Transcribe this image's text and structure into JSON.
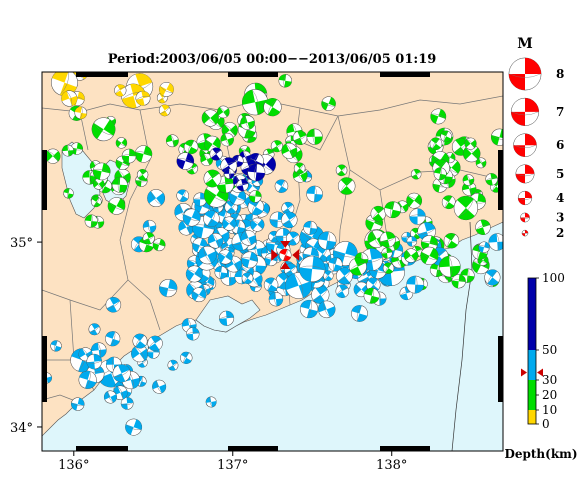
{
  "title": "Period:2003/06/05 00:00−−2013/06/05 01:19",
  "x_axis": {
    "range": [
      135.8,
      138.7
    ],
    "ticks": [
      {
        "value": 136,
        "label": "136°"
      },
      {
        "value": 137,
        "label": "137°"
      },
      {
        "value": 138,
        "label": "138°"
      }
    ]
  },
  "y_axis": {
    "range": [
      33.87,
      35.92
    ],
    "ticks": [
      {
        "value": 34,
        "label": "34°"
      },
      {
        "value": 35,
        "label": "35°"
      }
    ]
  },
  "colors": {
    "land": "#fde2c2",
    "sea": "#def6fb",
    "mechanism_fill": "#ff0000",
    "border_line": "#777777"
  },
  "magnitude_legend": {
    "title": "M",
    "entries": [
      {
        "label": "8",
        "m": 8
      },
      {
        "label": "7",
        "m": 7
      },
      {
        "label": "6",
        "m": 6
      },
      {
        "label": "5",
        "m": 5
      },
      {
        "label": "4",
        "m": 4
      },
      {
        "label": "3",
        "m": 3
      },
      {
        "label": "2",
        "m": 2
      }
    ]
  },
  "depth_scale": {
    "title": "Depth(km)",
    "min": 0,
    "max": 100,
    "marker_value": 35,
    "bands": [
      {
        "from": 0,
        "to": 10,
        "color": "#ffd700"
      },
      {
        "from": 10,
        "to": 20,
        "color": "#00dd00"
      },
      {
        "from": 20,
        "to": 30,
        "color": "#00dd00"
      },
      {
        "from": 30,
        "to": 50,
        "color": "#00aaee"
      },
      {
        "from": 50,
        "to": 100,
        "color": "#0000aa"
      }
    ],
    "labels": [
      {
        "value": 100,
        "label": "100"
      },
      {
        "value": 50,
        "label": "50"
      },
      {
        "value": 30,
        "label": "30"
      },
      {
        "value": 20,
        "label": "20"
      },
      {
        "value": 10,
        "label": "10"
      },
      {
        "value": 0,
        "label": "0"
      }
    ]
  },
  "highlight_event": {
    "lon": 137.33,
    "lat": 34.93,
    "m": 4.5
  }
}
